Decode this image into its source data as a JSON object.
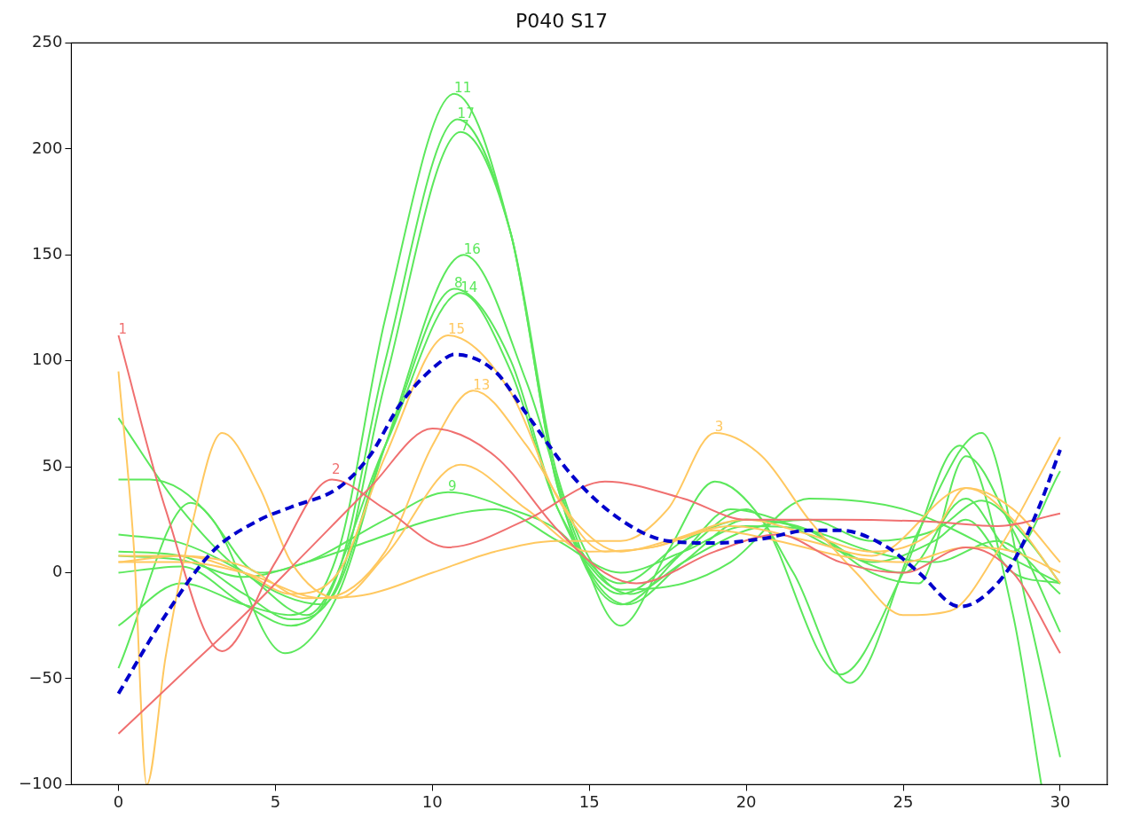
{
  "chart_data": {
    "type": "line",
    "title": "P040 S17",
    "xlim": [
      -1.5,
      31.5
    ],
    "ylim": [
      -100,
      250
    ],
    "xticks": [
      0,
      5,
      10,
      15,
      20,
      25,
      30
    ],
    "yticks": [
      -100,
      -50,
      0,
      50,
      100,
      150,
      200,
      250
    ],
    "grid": false,
    "legend": false,
    "marker": "none",
    "annotations": [
      {
        "text": "2",
        "x": 6.8,
        "y": 46
      }
    ],
    "series": [
      {
        "name": "1",
        "color": "#f07070",
        "line_style": "solid",
        "x": [
          0,
          1.5,
          3.3,
          5,
          6.8,
          8.5,
          10.5,
          13,
          15.5,
          18,
          20,
          23,
          26,
          28,
          30
        ],
        "values": [
          112,
          30,
          -37,
          5,
          44,
          30,
          12,
          25,
          43,
          35,
          25,
          25,
          24,
          22,
          28
        ]
      },
      {
        "color": "#f07070",
        "line_style": "solid",
        "x": [
          0,
          2,
          4,
          6,
          8,
          10,
          12,
          14,
          15.5,
          16.5,
          19,
          21,
          23,
          25,
          27,
          28.5,
          30
        ],
        "values": [
          -76,
          -48,
          -20,
          10,
          40,
          68,
          55,
          20,
          0,
          -5,
          10,
          18,
          5,
          0,
          12,
          0,
          -38
        ]
      },
      {
        "color": "#ffc860",
        "line_style": "solid",
        "x": [
          0,
          0.5,
          0.9,
          1.5,
          2.3,
          3.3,
          4.5,
          5.5,
          7,
          8.5,
          10.9,
          13,
          15,
          17,
          19.5,
          22,
          24,
          27,
          28.5,
          30
        ],
        "values": [
          95,
          10,
          -100,
          -40,
          20,
          66,
          40,
          5,
          -12,
          8,
          51,
          30,
          10,
          12,
          22,
          15,
          8,
          40,
          25,
          -5
        ]
      },
      {
        "name": "3",
        "color": "#ffc860",
        "line_style": "solid",
        "x": [
          0,
          2,
          4,
          6,
          8,
          10,
          12,
          14,
          16,
          17.5,
          19,
          20.5,
          22,
          23.5,
          25,
          26.5,
          28,
          30
        ],
        "values": [
          5,
          8,
          3,
          -12,
          -10,
          0,
          10,
          15,
          15,
          30,
          66,
          55,
          25,
          0,
          -20,
          -18,
          10,
          64
        ]
      },
      {
        "name": "15",
        "color": "#ffc860",
        "line_style": "solid",
        "x": [
          0,
          2,
          4,
          5.5,
          7,
          8.5,
          10.5,
          12.5,
          14,
          15.5,
          17,
          19,
          21,
          23,
          25,
          27,
          28.5,
          30
        ],
        "values": [
          8,
          8,
          0,
          -10,
          0,
          55,
          112,
          85,
          35,
          10,
          12,
          20,
          15,
          8,
          5,
          12,
          10,
          0
        ]
      },
      {
        "name": "13",
        "color": "#ffc860",
        "line_style": "solid",
        "x": [
          0,
          2,
          4,
          6.5,
          8.5,
          10,
          11.3,
          13,
          14.5,
          16,
          17.5,
          20,
          22,
          24,
          26,
          27,
          28.5,
          30
        ],
        "values": [
          5,
          5,
          0,
          -12,
          10,
          60,
          86,
          60,
          25,
          10,
          15,
          25,
          18,
          10,
          20,
          40,
          30,
          5
        ]
      },
      {
        "name": "11",
        "color": "#5ce85c",
        "line_style": "solid",
        "x": [
          0,
          2,
          4,
          5.5,
          7,
          8.5,
          10.7,
          12.5,
          14,
          16,
          18,
          19.5,
          21,
          23,
          25,
          27,
          28.5,
          30
        ],
        "values": [
          -25,
          -5,
          -15,
          -20,
          10,
          120,
          226,
          160,
          40,
          -15,
          10,
          30,
          25,
          10,
          0,
          35,
          10,
          48
        ]
      },
      {
        "name": "17",
        "color": "#5ce85c",
        "line_style": "solid",
        "x": [
          0,
          2,
          4,
          5.5,
          7,
          8.5,
          10.8,
          12.5,
          14,
          16.2,
          18,
          20,
          22,
          24,
          25.5,
          27,
          28.5,
          30
        ],
        "values": [
          0,
          3,
          -15,
          -25,
          0,
          100,
          214,
          160,
          40,
          -15,
          5,
          25,
          20,
          0,
          -5,
          55,
          20,
          -28
        ]
      },
      {
        "name": "7",
        "color": "#5ce85c",
        "line_style": "solid",
        "x": [
          0,
          2,
          4,
          5.5,
          7,
          8.5,
          10.9,
          12.5,
          14,
          16.3,
          18,
          20,
          22,
          24,
          26,
          27.5,
          29,
          30
        ],
        "values": [
          10,
          8,
          -10,
          -22,
          -5,
          90,
          208,
          160,
          45,
          -10,
          5,
          20,
          25,
          15,
          20,
          34,
          15,
          -5
        ]
      },
      {
        "name": "16",
        "color": "#5ce85c",
        "line_style": "solid",
        "x": [
          0,
          1,
          3,
          5.3,
          7,
          8.5,
          11,
          13,
          14.5,
          16,
          17.5,
          19,
          20.5,
          23,
          25,
          26.8,
          28.5,
          29.4
        ],
        "values": [
          44,
          44,
          25,
          -38,
          -10,
          60,
          150,
          90,
          20,
          -25,
          10,
          43,
          25,
          -48,
          0,
          60,
          -20,
          -100
        ]
      },
      {
        "name": "8",
        "color": "#5ce85c",
        "line_style": "solid",
        "x": [
          0,
          2,
          4,
          6.5,
          8.5,
          10.7,
          12.5,
          14,
          16,
          18,
          20,
          21.5,
          23.3,
          25.5,
          27.5,
          29,
          30
        ],
        "values": [
          73,
          30,
          0,
          -15,
          60,
          134,
          100,
          30,
          -10,
          10,
          30,
          0,
          -52,
          20,
          66,
          -20,
          -87
        ]
      },
      {
        "name": "14",
        "color": "#5ce85c",
        "line_style": "solid",
        "x": [
          0,
          2,
          4,
          6,
          8.5,
          10.9,
          12.5,
          14,
          16,
          18,
          20,
          22,
          24,
          26,
          27,
          28.5,
          30
        ],
        "values": [
          18,
          14,
          0,
          -20,
          60,
          132,
          95,
          30,
          -5,
          15,
          25,
          20,
          5,
          15,
          25,
          0,
          -5
        ]
      },
      {
        "name": "9",
        "color": "#5ce85c",
        "line_style": "solid",
        "x": [
          0,
          2.3,
          4.5,
          6,
          8.5,
          10.5,
          12.5,
          14,
          16,
          18,
          19.5,
          22,
          25,
          28,
          30
        ],
        "values": [
          -45,
          33,
          0,
          5,
          25,
          38,
          30,
          20,
          -8,
          -5,
          5,
          35,
          30,
          10,
          -5
        ]
      },
      {
        "color": "#5ce85c",
        "line_style": "solid",
        "x": [
          0,
          2,
          4,
          6,
          8,
          10,
          12,
          14,
          16,
          18,
          20,
          22,
          24,
          26,
          28,
          30
        ],
        "values": [
          8,
          6,
          -2,
          5,
          15,
          25,
          30,
          15,
          0,
          10,
          22,
          20,
          10,
          5,
          15,
          -10
        ]
      },
      {
        "color": "#0000cc",
        "line_style": "dashed",
        "x": [
          0,
          1.5,
          3,
          4.5,
          5.5,
          7,
          8,
          9,
          10.3,
          10.7,
          12,
          13,
          14.5,
          16,
          17.5,
          19,
          20.5,
          22,
          23,
          24.5,
          25.5,
          26.8,
          27.5,
          28.5,
          29.3,
          30
        ],
        "values": [
          -57,
          -20,
          10,
          25,
          31,
          40,
          55,
          80,
          100,
          103,
          95,
          75,
          45,
          25,
          15,
          14,
          16,
          20,
          20,
          12,
          0,
          -16,
          -12,
          5,
          30,
          58
        ]
      }
    ]
  }
}
